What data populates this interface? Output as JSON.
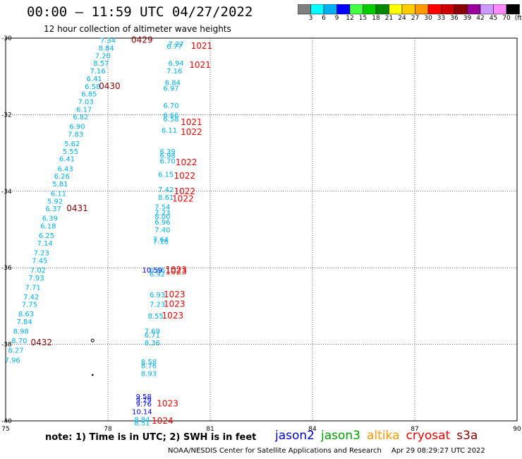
{
  "title": "00:00 – 11:59 UTC 04/27/2022",
  "subtitle": "12 hour collection of altimeter wave heights",
  "colorbar": {
    "colors": [
      "#808080",
      "#00ffff",
      "#00b0f0",
      "#0000ff",
      "#44ff44",
      "#00cc00",
      "#008800",
      "#ffff00",
      "#ffcc00",
      "#ff9900",
      "#ff0000",
      "#cc0000",
      "#880000",
      "#990099",
      "#cc99ff",
      "#ff88ff",
      "#000000"
    ],
    "labels": [
      "3",
      "6",
      "9",
      "12",
      "15",
      "18",
      "21",
      "24",
      "27",
      "30",
      "33",
      "36",
      "39",
      "42",
      "45",
      "70",
      "(ft)"
    ]
  },
  "axes": {
    "lon_range": [
      75,
      90
    ],
    "lat_range": [
      -40,
      -30
    ],
    "x_ticks": [
      "75",
      "78",
      "81",
      "84",
      "87",
      "90"
    ],
    "y_ticks": [
      "-30",
      "-32",
      "-34",
      "-36",
      "-38",
      "-40"
    ],
    "grid": "dotted"
  },
  "tracks": {
    "west_track_swh": [
      {
        "lon": 78.0,
        "lat": -30.05,
        "v": "7.34",
        "c": "#00b0f0"
      },
      {
        "lon": 77.95,
        "lat": -30.25,
        "v": "8.84",
        "c": "#00b0f0"
      },
      {
        "lon": 77.85,
        "lat": -30.45,
        "v": "7.20",
        "c": "#00b0f0"
      },
      {
        "lon": 77.8,
        "lat": -30.65,
        "v": "8.57",
        "c": "#00b0f0"
      },
      {
        "lon": 77.7,
        "lat": -30.85,
        "v": "7.16",
        "c": "#00b0f0"
      },
      {
        "lon": 77.6,
        "lat": -31.05,
        "v": "6.41",
        "c": "#00b0f0"
      },
      {
        "lon": 77.55,
        "lat": -31.25,
        "v": "6.58",
        "c": "#00b0f0"
      },
      {
        "lon": 77.45,
        "lat": -31.45,
        "v": "6.85",
        "c": "#00b0f0"
      },
      {
        "lon": 77.35,
        "lat": -31.65,
        "v": "7.03",
        "c": "#00b0f0"
      },
      {
        "lon": 77.3,
        "lat": -31.85,
        "v": "6.17",
        "c": "#00b0f0"
      },
      {
        "lon": 77.2,
        "lat": -32.05,
        "v": "6.82",
        "c": "#00b0f0"
      },
      {
        "lon": 77.1,
        "lat": -32.3,
        "v": "6.90",
        "c": "#00b0f0"
      },
      {
        "lon": 77.05,
        "lat": -32.5,
        "v": "7.83",
        "c": "#00b0f0"
      },
      {
        "lon": 76.95,
        "lat": -32.75,
        "v": "5.62",
        "c": "#00b0f0"
      },
      {
        "lon": 76.9,
        "lat": -32.95,
        "v": "5.55",
        "c": "#00b0f0"
      },
      {
        "lon": 76.8,
        "lat": -33.15,
        "v": "6.41",
        "c": "#00b0f0"
      },
      {
        "lon": 76.75,
        "lat": -33.4,
        "v": "6.43",
        "c": "#00b0f0"
      },
      {
        "lon": 76.65,
        "lat": -33.6,
        "v": "6.26",
        "c": "#00b0f0"
      },
      {
        "lon": 76.6,
        "lat": -33.8,
        "v": "5.81",
        "c": "#00b0f0"
      },
      {
        "lon": 76.55,
        "lat": -34.05,
        "v": "6.11",
        "c": "#00b0f0"
      },
      {
        "lon": 76.45,
        "lat": -34.25,
        "v": "5.92",
        "c": "#00b0f0"
      },
      {
        "lon": 76.4,
        "lat": -34.45,
        "v": "6.37",
        "c": "#00b0f0"
      },
      {
        "lon": 76.3,
        "lat": -34.7,
        "v": "6.39",
        "c": "#00b0f0"
      },
      {
        "lon": 76.25,
        "lat": -34.9,
        "v": "6.18",
        "c": "#00b0f0"
      },
      {
        "lon": 76.2,
        "lat": -35.15,
        "v": "6.25",
        "c": "#00b0f0"
      },
      {
        "lon": 76.15,
        "lat": -35.35,
        "v": "7.14",
        "c": "#00b0f0"
      },
      {
        "lon": 76.05,
        "lat": -35.6,
        "v": "7.23",
        "c": "#00b0f0"
      },
      {
        "lon": 76.0,
        "lat": -35.8,
        "v": "7.45",
        "c": "#00b0f0"
      },
      {
        "lon": 75.95,
        "lat": -36.05,
        "v": "7.02",
        "c": "#00b0f0"
      },
      {
        "lon": 75.9,
        "lat": -36.25,
        "v": "7.93",
        "c": "#00b0f0"
      },
      {
        "lon": 75.8,
        "lat": -36.5,
        "v": "7.71",
        "c": "#00b0f0"
      },
      {
        "lon": 75.75,
        "lat": -36.75,
        "v": "7.42",
        "c": "#00b0f0"
      },
      {
        "lon": 75.7,
        "lat": -36.95,
        "v": "7.75",
        "c": "#00b0f0"
      },
      {
        "lon": 75.6,
        "lat": -37.2,
        "v": "8.63",
        "c": "#00b0f0"
      },
      {
        "lon": 75.55,
        "lat": -37.4,
        "v": "7.84",
        "c": "#00b0f0"
      },
      {
        "lon": 75.45,
        "lat": -37.65,
        "v": "8.98",
        "c": "#00b0f0"
      },
      {
        "lon": 75.4,
        "lat": -37.9,
        "v": "8.70",
        "c": "#00b0f0"
      },
      {
        "lon": 75.3,
        "lat": -38.15,
        "v": "8.27",
        "c": "#00b0f0"
      },
      {
        "lon": 75.2,
        "lat": -38.4,
        "v": "7.96",
        "c": "#00b0f0"
      }
    ],
    "east_track_swh": [
      {
        "lon": 80.0,
        "lat": -30.15,
        "v": "7.27",
        "c": "#00b0f0"
      },
      {
        "lon": 79.95,
        "lat": -30.2,
        "v": "6.77",
        "c": "#00b0f0"
      },
      {
        "lon": 80.0,
        "lat": -30.65,
        "v": "6.94",
        "c": "#00b0f0"
      },
      {
        "lon": 79.95,
        "lat": -30.85,
        "v": "7.16",
        "c": "#00b0f0"
      },
      {
        "lon": 79.9,
        "lat": -31.15,
        "v": "6.84",
        "c": "#00b0f0"
      },
      {
        "lon": 79.85,
        "lat": -31.3,
        "v": "6.97",
        "c": "#00b0f0"
      },
      {
        "lon": 79.85,
        "lat": -31.75,
        "v": "6.70",
        "c": "#00b0f0"
      },
      {
        "lon": 79.85,
        "lat": -32.0,
        "v": "6.66",
        "c": "#00b0f0"
      },
      {
        "lon": 79.85,
        "lat": -32.1,
        "v": "6.58",
        "c": "#00b0f0"
      },
      {
        "lon": 79.8,
        "lat": -32.4,
        "v": "6.11",
        "c": "#00b0f0"
      },
      {
        "lon": 79.75,
        "lat": -32.95,
        "v": "6.39",
        "c": "#00b0f0"
      },
      {
        "lon": 79.75,
        "lat": -33.05,
        "v": "6.98",
        "c": "#00b0f0"
      },
      {
        "lon": 79.75,
        "lat": -33.2,
        "v": "6.70",
        "c": "#00b0f0"
      },
      {
        "lon": 79.7,
        "lat": -33.55,
        "v": "6.15",
        "c": "#00b0f0"
      },
      {
        "lon": 79.7,
        "lat": -33.95,
        "v": "7.42",
        "c": "#00b0f0"
      },
      {
        "lon": 79.7,
        "lat": -34.15,
        "v": "8.61",
        "c": "#00b0f0"
      },
      {
        "lon": 79.6,
        "lat": -34.4,
        "v": "7.54",
        "c": "#00b0f0"
      },
      {
        "lon": 79.6,
        "lat": -34.55,
        "v": "7.23",
        "c": "#00b0f0"
      },
      {
        "lon": 79.6,
        "lat": -34.65,
        "v": "8.00",
        "c": "#00b0f0"
      },
      {
        "lon": 79.6,
        "lat": -34.8,
        "v": "6.96",
        "c": "#00b0f0"
      },
      {
        "lon": 79.6,
        "lat": -35.0,
        "v": "7.40",
        "c": "#00b0f0"
      },
      {
        "lon": 79.55,
        "lat": -35.25,
        "v": "7.64",
        "c": "#00b0f0"
      },
      {
        "lon": 79.55,
        "lat": -35.3,
        "v": "7.16",
        "c": "#00b0f0"
      },
      {
        "lon": 79.45,
        "lat": -36.05,
        "v": "6.66",
        "c": "#00b0f0"
      },
      {
        "lon": 79.45,
        "lat": -36.15,
        "v": "6.92",
        "c": "#00b0f0"
      },
      {
        "lon": 79.45,
        "lat": -36.7,
        "v": "6.93",
        "c": "#00b0f0"
      },
      {
        "lon": 79.45,
        "lat": -36.95,
        "v": "7.23",
        "c": "#00b0f0"
      },
      {
        "lon": 79.4,
        "lat": -37.25,
        "v": "8.55",
        "c": "#00b0f0"
      },
      {
        "lon": 79.3,
        "lat": -37.65,
        "v": "7.69",
        "c": "#00b0f0"
      },
      {
        "lon": 79.3,
        "lat": -37.75,
        "v": "6.71",
        "c": "#00b0f0"
      },
      {
        "lon": 79.3,
        "lat": -37.95,
        "v": "8.36",
        "c": "#00b0f0"
      },
      {
        "lon": 79.2,
        "lat": -38.45,
        "v": "8.58",
        "c": "#00b0f0"
      },
      {
        "lon": 79.2,
        "lat": -38.55,
        "v": "8.76",
        "c": "#00b0f0"
      },
      {
        "lon": 79.2,
        "lat": -38.75,
        "v": "8.93",
        "c": "#00b0f0"
      },
      {
        "lon": 79.05,
        "lat": -39.35,
        "v": "9.58",
        "c": "#0000ff"
      },
      {
        "lon": 79.05,
        "lat": -39.45,
        "v": "9.79",
        "c": "#0000ff"
      },
      {
        "lon": 79.05,
        "lat": -39.55,
        "v": "9.76",
        "c": "#0000ff"
      },
      {
        "lon": 79.0,
        "lat": -39.75,
        "v": "10.14",
        "c": "#0000ff"
      },
      {
        "lon": 79.0,
        "lat": -39.95,
        "v": "8.84",
        "c": "#00b0f0"
      },
      {
        "lon": 79.0,
        "lat": -40.05,
        "v": "8.51",
        "c": "#00b0f0"
      },
      {
        "lon": 79.3,
        "lat": -36.05,
        "v": "10.59",
        "c": "#0000ff"
      }
    ],
    "time_labels": [
      {
        "lon": 79.0,
        "lat": -30.05,
        "text": "0429",
        "c": "#880000"
      },
      {
        "lon": 78.05,
        "lat": -31.25,
        "text": "0430",
        "c": "#880000"
      },
      {
        "lon": 77.1,
        "lat": -34.45,
        "text": "0431",
        "c": "#880000"
      },
      {
        "lon": 76.05,
        "lat": -37.95,
        "text": "0432",
        "c": "#880000"
      },
      {
        "lon": 80.75,
        "lat": -30.2,
        "text": "1021",
        "c": "#ee0000"
      },
      {
        "lon": 80.7,
        "lat": -30.7,
        "text": "1021",
        "c": "#ee0000"
      },
      {
        "lon": 80.45,
        "lat": -32.2,
        "text": "1021",
        "c": "#ee0000"
      },
      {
        "lon": 80.45,
        "lat": -32.45,
        "text": "1022",
        "c": "#ee0000"
      },
      {
        "lon": 80.3,
        "lat": -33.25,
        "text": "1022",
        "c": "#ee0000"
      },
      {
        "lon": 80.25,
        "lat": -33.6,
        "text": "1022",
        "c": "#ee0000"
      },
      {
        "lon": 80.25,
        "lat": -34.0,
        "text": "1022",
        "c": "#ee0000"
      },
      {
        "lon": 80.2,
        "lat": -34.2,
        "text": "1022",
        "c": "#ee0000"
      },
      {
        "lon": 80.0,
        "lat": -36.05,
        "text": "1023",
        "c": "#ee0000"
      },
      {
        "lon": 80.0,
        "lat": -36.1,
        "text": "1023",
        "c": "#ee0000"
      },
      {
        "lon": 79.95,
        "lat": -36.7,
        "text": "1023",
        "c": "#ee0000"
      },
      {
        "lon": 79.95,
        "lat": -36.95,
        "text": "1023",
        "c": "#ee0000"
      },
      {
        "lon": 79.9,
        "lat": -37.25,
        "text": "1023",
        "c": "#ee0000"
      },
      {
        "lon": 79.75,
        "lat": -39.55,
        "text": "1023",
        "c": "#ee0000"
      },
      {
        "lon": 79.6,
        "lat": -40.0,
        "text": "1024",
        "c": "#ee0000"
      }
    ],
    "dots": [
      {
        "lon": 77.55,
        "lat": -37.9,
        "type": "ring"
      },
      {
        "lon": 77.55,
        "lat": -38.8,
        "type": "dot"
      }
    ]
  },
  "note": "note:  1) Time is in UTC;  2) SWH is in feet",
  "satellites": [
    {
      "name": "jason2",
      "color": "#0000cc"
    },
    {
      "name": "jason3",
      "color": "#00a000"
    },
    {
      "name": "altika",
      "color": "#ff9900"
    },
    {
      "name": "cryosat",
      "color": "#ee0000"
    },
    {
      "name": "s3a",
      "color": "#880000"
    }
  ],
  "footer": {
    "agency": "NOAA/NESDIS Center for Satellite Applications and Research",
    "date": "Apr 29 08:29:27 UTC 2022"
  }
}
